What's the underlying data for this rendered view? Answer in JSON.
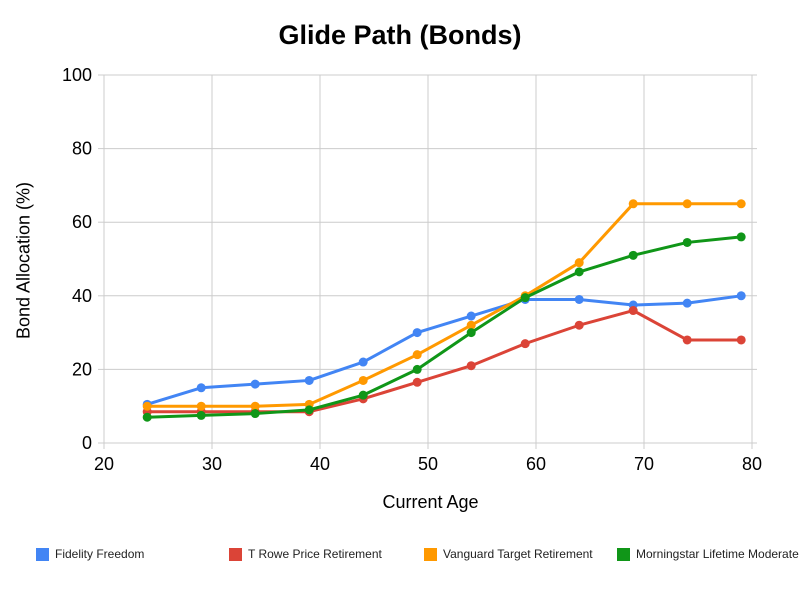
{
  "chart_data": {
    "type": "line",
    "title": "Glide Path (Bonds)",
    "xlabel": "Current Age",
    "ylabel": "Bond Allocation (%)",
    "x": [
      24,
      29,
      34,
      39,
      44,
      49,
      54,
      59,
      64,
      69,
      74,
      79
    ],
    "xlim": [
      20,
      80
    ],
    "ylim": [
      0,
      100
    ],
    "x_ticks": [
      "20",
      "30",
      "40",
      "50",
      "60",
      "70",
      "80"
    ],
    "y_ticks": [
      "0",
      "20",
      "40",
      "60",
      "80",
      "100"
    ],
    "grid": true,
    "grid_color": "#cccccc",
    "legend_position": "bottom",
    "series": [
      {
        "name": "Fidelity Freedom",
        "color": "#4285f4",
        "values": [
          10.5,
          15,
          16,
          17,
          22,
          30,
          34.5,
          39,
          39,
          37.5,
          38,
          40
        ]
      },
      {
        "name": "T Rowe Price Retirement",
        "color": "#db4437",
        "values": [
          8.5,
          8.5,
          8.5,
          8.5,
          12,
          16.5,
          21,
          27,
          32,
          36,
          28,
          28
        ]
      },
      {
        "name": "Vanguard Target Retirement",
        "color": "#ff9900",
        "values": [
          10,
          10,
          10,
          10.5,
          17,
          24,
          32,
          40,
          49,
          65,
          65,
          65
        ]
      },
      {
        "name": "Morningstar Lifetime Moderate",
        "color": "#109618",
        "values": [
          7,
          7.5,
          8,
          9,
          13,
          20,
          30,
          39.5,
          46.5,
          51,
          54.5,
          56
        ]
      }
    ]
  },
  "legend_x_positions": [
    36,
    229,
    424,
    617
  ]
}
